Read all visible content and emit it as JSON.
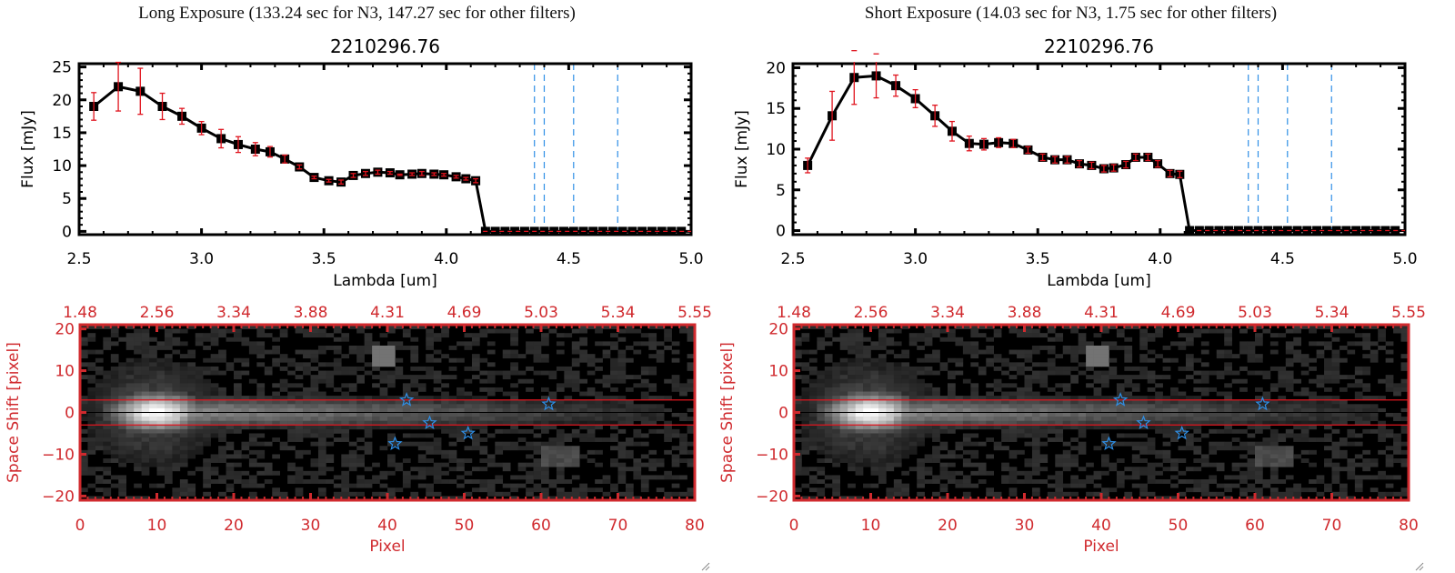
{
  "colors": {
    "line": "#000000",
    "errorbar": "#e0141e",
    "filter_lines": "#2f8fe6",
    "zero_line": "#e0141e",
    "image_axes": "#d02a2e",
    "star": "#2f8fe6",
    "aperture": "#e0141e"
  },
  "chart_data": [
    {
      "type": "line",
      "panel_title": "Long Exposure (133.24 sec for N3, 147.27 sec for other filters)",
      "title": "2210296.76",
      "xlabel": "Lambda [um]",
      "ylabel": "Flux [mJy]",
      "xlim": [
        2.5,
        5.0
      ],
      "ylim": [
        -0.5,
        25.5
      ],
      "xticks": [
        2.5,
        3.0,
        3.5,
        4.0,
        4.5,
        5.0
      ],
      "xtick_labels": [
        "2.5",
        "3.0",
        "3.5",
        "4.0",
        "4.5",
        "5.0"
      ],
      "yticks": [
        0,
        5,
        10,
        15,
        20,
        25
      ],
      "ytick_labels": [
        "0",
        "5",
        "10",
        "15",
        "20",
        "25"
      ],
      "vlines": [
        4.36,
        4.4,
        4.52,
        4.7
      ],
      "hline_zero": true,
      "series": [
        {
          "name": "flux",
          "x": [
            2.56,
            2.66,
            2.75,
            2.84,
            2.92,
            3.0,
            3.08,
            3.15,
            3.22,
            3.28,
            3.34,
            3.4,
            3.46,
            3.52,
            3.57,
            3.62,
            3.67,
            3.72,
            3.77,
            3.81,
            3.86,
            3.9,
            3.95,
            3.99,
            4.04,
            4.08,
            4.12,
            4.16,
            4.2,
            4.24,
            4.28,
            4.32,
            4.36,
            4.4,
            4.44,
            4.48,
            4.52,
            4.56,
            4.6,
            4.64,
            4.68,
            4.72,
            4.76,
            4.8,
            4.84,
            4.88,
            4.92,
            4.96
          ],
          "y": [
            19.0,
            22.0,
            21.3,
            19.0,
            17.5,
            15.7,
            14.1,
            13.2,
            12.5,
            12.1,
            11.0,
            9.8,
            8.2,
            7.7,
            7.5,
            8.5,
            8.8,
            9.0,
            8.9,
            8.6,
            8.7,
            8.8,
            8.7,
            8.6,
            8.3,
            8.0,
            7.7,
            0,
            0,
            0,
            0,
            0,
            0,
            0,
            0,
            0,
            0,
            0,
            0,
            0,
            0,
            0,
            0,
            0,
            0,
            0,
            0,
            0
          ],
          "err": [
            2.1,
            3.7,
            3.5,
            2.0,
            1.2,
            1.0,
            1.4,
            1.2,
            1.0,
            0.8,
            0.6,
            0.3,
            0.2,
            0.2,
            0.3,
            0.3,
            0.3,
            0.3,
            0.2,
            0.1,
            0.2,
            0.3,
            0.2,
            0.2,
            0.2,
            0.2,
            0.3,
            0,
            0,
            0,
            0,
            0,
            0,
            0,
            0,
            0,
            0,
            0,
            0,
            0,
            0,
            0,
            0,
            0,
            0,
            0,
            0,
            0
          ]
        }
      ]
    },
    {
      "type": "heatmap",
      "xlabel": "Pixel",
      "ylabel": "Space Shift [pixel]",
      "xlim": [
        0,
        80
      ],
      "ylim": [
        -21,
        21
      ],
      "xticks": [
        0,
        10,
        20,
        30,
        40,
        50,
        60,
        70,
        80
      ],
      "yticks": [
        20,
        10,
        0,
        -10,
        -20
      ],
      "top_axis_labels": [
        "1.48",
        "2.56",
        "3.34",
        "3.88",
        "4.31",
        "4.69",
        "5.03",
        "5.34",
        "5.55"
      ],
      "aperture_lines": [
        3,
        -3
      ],
      "center_line": 0,
      "stars": [
        {
          "x": 42.5,
          "y": 3
        },
        {
          "x": 45.5,
          "y": -2.5
        },
        {
          "x": 50.5,
          "y": -5
        },
        {
          "x": 41,
          "y": -7.5
        },
        {
          "x": 61,
          "y": 2
        }
      ]
    },
    {
      "type": "line",
      "panel_title": "Short Exposure (14.03 sec for N3, 1.75 sec for other filters)",
      "title": "2210296.76",
      "xlabel": "Lambda [um]",
      "ylabel": "Flux [mJy]",
      "xlim": [
        2.5,
        5.0
      ],
      "ylim": [
        -0.5,
        20.5
      ],
      "xticks": [
        2.5,
        3.0,
        3.5,
        4.0,
        4.5,
        5.0
      ],
      "xtick_labels": [
        "2.5",
        "3.0",
        "3.5",
        "4.0",
        "4.5",
        "5.0"
      ],
      "yticks": [
        0,
        5,
        10,
        15,
        20
      ],
      "ytick_labels": [
        "0",
        "5",
        "10",
        "15",
        "20"
      ],
      "vlines": [
        4.36,
        4.4,
        4.52,
        4.7
      ],
      "hline_zero": true,
      "series": [
        {
          "name": "flux",
          "x": [
            2.56,
            2.66,
            2.75,
            2.84,
            2.92,
            3.0,
            3.08,
            3.15,
            3.22,
            3.28,
            3.34,
            3.4,
            3.46,
            3.52,
            3.57,
            3.62,
            3.67,
            3.72,
            3.77,
            3.81,
            3.86,
            3.9,
            3.95,
            3.99,
            4.04,
            4.08,
            4.12,
            4.16,
            4.2,
            4.24,
            4.28,
            4.32,
            4.36,
            4.4,
            4.44,
            4.48,
            4.52,
            4.56,
            4.6,
            4.64,
            4.68,
            4.72,
            4.76,
            4.8,
            4.84,
            4.88,
            4.92,
            4.96
          ],
          "y": [
            8.0,
            14.1,
            18.8,
            19.0,
            17.8,
            16.2,
            14.1,
            12.2,
            10.7,
            10.6,
            10.8,
            10.7,
            9.9,
            9.0,
            8.7,
            8.7,
            8.2,
            8.0,
            7.6,
            7.7,
            8.1,
            9.0,
            9.0,
            8.2,
            7.0,
            6.9,
            0,
            0,
            0,
            0,
            0,
            0,
            0,
            0,
            0,
            0,
            0,
            0,
            0,
            0,
            0,
            0,
            0,
            0,
            0,
            0,
            0,
            0
          ],
          "err": [
            0.9,
            3.0,
            3.3,
            2.7,
            1.3,
            1.1,
            1.3,
            1.2,
            0.9,
            0.7,
            0.6,
            0.5,
            0.4,
            0.4,
            0.4,
            0.4,
            0.4,
            0.4,
            0.4,
            0.4,
            0.4,
            0.4,
            0.4,
            0.4,
            0.4,
            0.4,
            0,
            0,
            0,
            0,
            0,
            0,
            0,
            0,
            0,
            0,
            0,
            0,
            0,
            0,
            0,
            0,
            0,
            0,
            0,
            0,
            0,
            0
          ]
        }
      ]
    },
    {
      "type": "heatmap",
      "xlabel": "Pixel",
      "ylabel": "Space Shift [pixel]",
      "xlim": [
        0,
        80
      ],
      "ylim": [
        -21,
        21
      ],
      "xticks": [
        0,
        10,
        20,
        30,
        40,
        50,
        60,
        70,
        80
      ],
      "yticks": [
        20,
        10,
        0,
        -10,
        -20
      ],
      "top_axis_labels": [
        "1.48",
        "2.56",
        "3.34",
        "3.88",
        "4.31",
        "4.69",
        "5.03",
        "5.34",
        "5.55"
      ],
      "aperture_lines": [
        3,
        -3
      ],
      "center_line": 0,
      "stars": [
        {
          "x": 42.5,
          "y": 3
        },
        {
          "x": 45.5,
          "y": -2.5
        },
        {
          "x": 50.5,
          "y": -5
        },
        {
          "x": 41,
          "y": -7.5
        },
        {
          "x": 61,
          "y": 2
        }
      ]
    }
  ]
}
